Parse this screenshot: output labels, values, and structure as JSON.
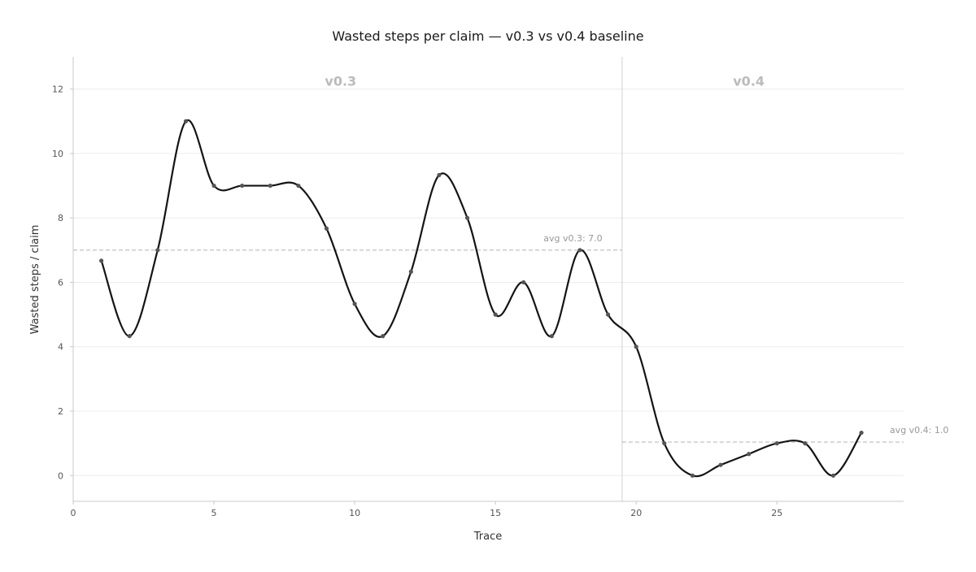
{
  "chart_data": {
    "type": "line",
    "title": "Wasted steps per claim — v0.3 vs v0.4 baseline",
    "xlabel": "Trace",
    "ylabel": "Wasted steps / claim",
    "xlim": [
      0,
      29.5
    ],
    "ylim": [
      -0.8,
      13
    ],
    "xticks": [
      0,
      5,
      10,
      15,
      20,
      25
    ],
    "yticks": [
      0,
      2,
      4,
      6,
      8,
      10,
      12
    ],
    "grid": "horizontal",
    "x": [
      1,
      2,
      3,
      4,
      5,
      6,
      7,
      8,
      9,
      10,
      11,
      12,
      13,
      14,
      15,
      16,
      17,
      18,
      19,
      20,
      21,
      22,
      23,
      24,
      25,
      26,
      27,
      28
    ],
    "y": [
      6.67,
      4.33,
      7.0,
      11.0,
      9.0,
      9.0,
      9.0,
      9.0,
      7.67,
      5.33,
      4.33,
      6.33,
      9.33,
      8.0,
      5.0,
      6.0,
      4.33,
      7.0,
      5.0,
      4.0,
      1.0,
      0.0,
      0.33,
      0.67,
      1.0,
      1.0,
      0.0,
      1.33
    ],
    "line_color": "#141414",
    "split_x": 19.5,
    "regions": [
      {
        "label": "v0.3",
        "x_start": 0,
        "x_end": 19.5,
        "label_x": 9.5,
        "label_y": 12.25
      },
      {
        "label": "v0.4",
        "x_start": 19.5,
        "x_end": 29.5,
        "label_x": 24.0,
        "label_y": 12.25
      }
    ],
    "averages": [
      {
        "label": "avg v0.3: 7.0",
        "value": 7.0,
        "x_start": 0,
        "x_end": 19.5,
        "label_x": 18.8
      },
      {
        "label": "avg v0.4: 1.0",
        "value": 1.04,
        "x_start": 19.5,
        "x_end": 29.5,
        "label_x": 31.1
      }
    ]
  }
}
